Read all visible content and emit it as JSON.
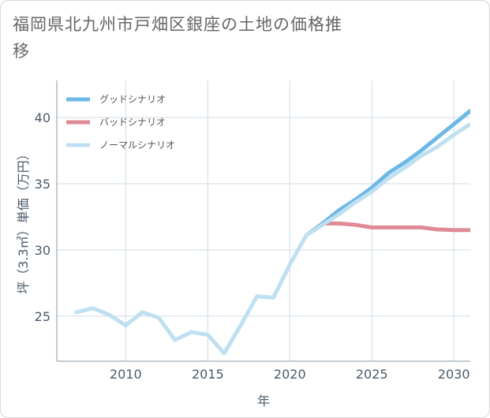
{
  "chart_data": {
    "type": "line",
    "title": "福岡県北九州市戸畑区銀座の土地の価格推移",
    "xlabel": "年",
    "ylabel": "坪（3.3㎡）単価（万円）",
    "xlim": [
      2005.8,
      2031
    ],
    "ylim": [
      21.6,
      42.8
    ],
    "x_ticks": [
      2010,
      2015,
      2020,
      2025,
      2030
    ],
    "y_ticks": [
      25,
      30,
      35,
      40
    ],
    "grid": true,
    "legend_position": "top-left",
    "series": [
      {
        "name": "グッドシナリオ",
        "color": "#6cb8e6",
        "points": [
          [
            2021,
            31.1
          ],
          [
            2022,
            32.0
          ],
          [
            2023,
            33.0
          ],
          [
            2024,
            33.8
          ],
          [
            2025,
            34.7
          ],
          [
            2026,
            35.8
          ],
          [
            2027,
            36.6
          ],
          [
            2028,
            37.5
          ],
          [
            2029,
            38.5
          ],
          [
            2030,
            39.5
          ],
          [
            2031,
            40.5
          ]
        ]
      },
      {
        "name": "バッドシナリオ",
        "color": "#df8a94",
        "points": [
          [
            2021,
            31.1
          ],
          [
            2022,
            32.0
          ],
          [
            2023,
            32.0
          ],
          [
            2024,
            31.9
          ],
          [
            2025,
            31.7
          ],
          [
            2026,
            31.7
          ],
          [
            2027,
            31.7
          ],
          [
            2028,
            31.7
          ],
          [
            2029,
            31.55
          ],
          [
            2030,
            31.5
          ],
          [
            2031,
            31.5
          ]
        ]
      },
      {
        "name": "ノーマルシナリオ",
        "color": "#bfe0f0",
        "points": [
          [
            2007,
            25.3
          ],
          [
            2008,
            25.6
          ],
          [
            2009,
            25.1
          ],
          [
            2010,
            24.3
          ],
          [
            2011,
            25.3
          ],
          [
            2012,
            24.9
          ],
          [
            2013,
            23.2
          ],
          [
            2014,
            23.8
          ],
          [
            2015,
            23.6
          ],
          [
            2016,
            22.2
          ],
          [
            2017,
            24.3
          ],
          [
            2018,
            26.5
          ],
          [
            2019,
            26.4
          ],
          [
            2020,
            28.9
          ],
          [
            2021,
            31.1
          ],
          [
            2022,
            31.9
          ],
          [
            2023,
            32.7
          ],
          [
            2024,
            33.6
          ],
          [
            2025,
            34.4
          ],
          [
            2026,
            35.4
          ],
          [
            2027,
            36.2
          ],
          [
            2028,
            37.1
          ],
          [
            2029,
            37.8
          ],
          [
            2030,
            38.7
          ],
          [
            2031,
            39.5
          ]
        ]
      }
    ]
  },
  "colors": {
    "background": "#ffffff",
    "grid": "#cfdce6",
    "axis_line": "#8a9aa6",
    "text": "#4a5a6a"
  }
}
